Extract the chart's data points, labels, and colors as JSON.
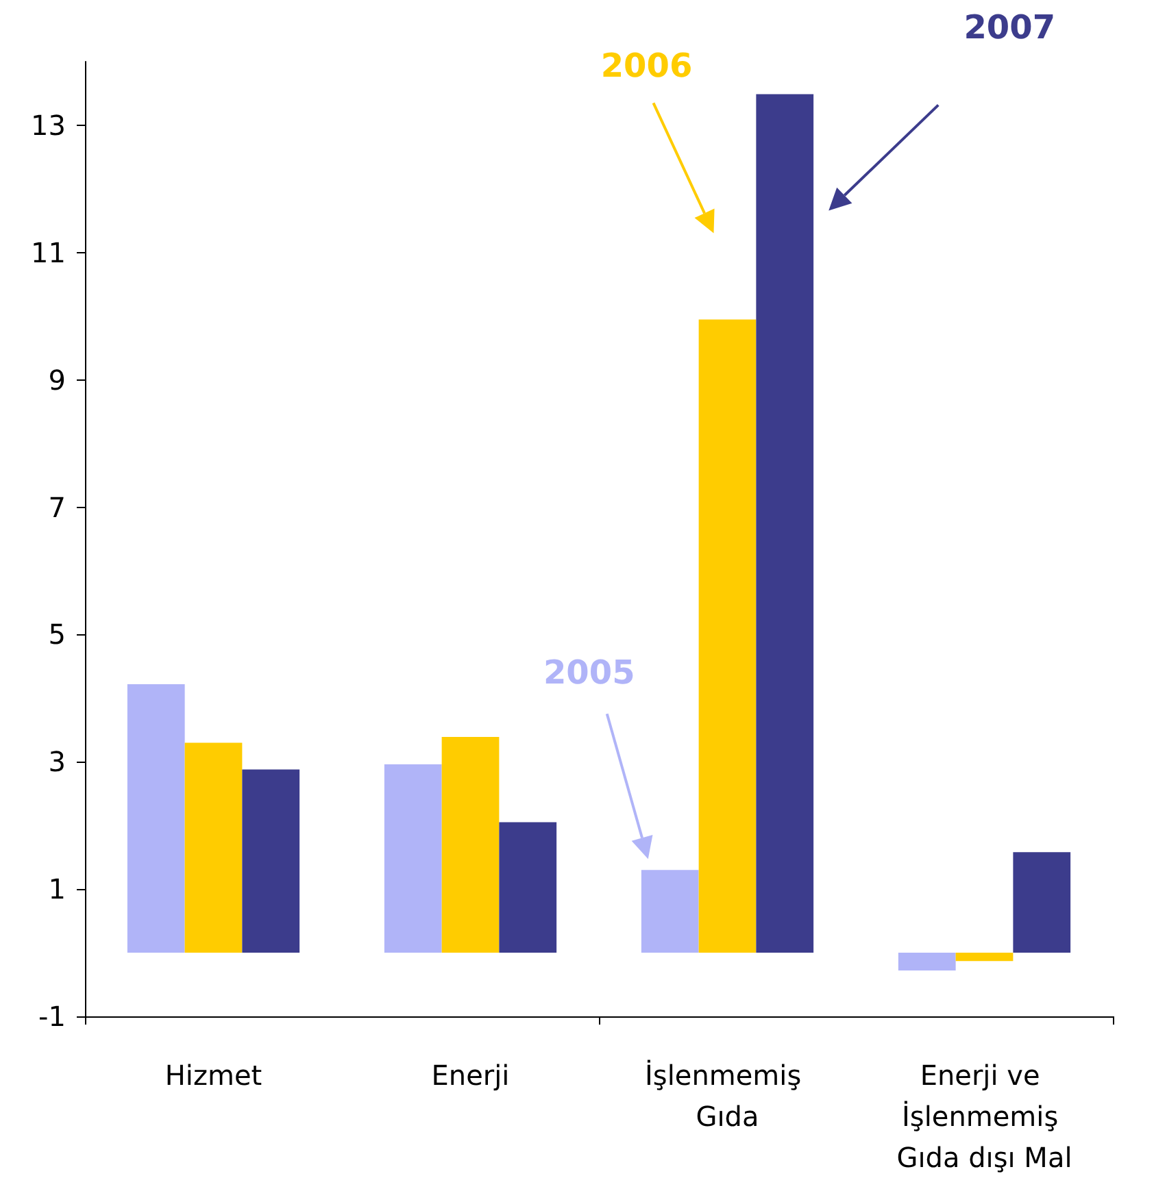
{
  "chart_data": {
    "type": "bar",
    "categories": [
      "Hizmet",
      "Enerji",
      "İşlenmemiş Gıda",
      "Enerji ve İşlenmemiş Gıda dışı Mal"
    ],
    "series": [
      {
        "name": "2005",
        "color": "#b0b4f8",
        "values": [
          4.22,
          2.96,
          1.3,
          -0.28
        ]
      },
      {
        "name": "2006",
        "color": "#ffcc00",
        "values": [
          3.3,
          3.39,
          9.95,
          -0.13
        ]
      },
      {
        "name": "2007",
        "color": "#3c3c8c",
        "values": [
          2.88,
          2.05,
          13.49,
          1.58
        ]
      }
    ],
    "ylim": [
      -1,
      14
    ],
    "yticks": [
      -1,
      1,
      3,
      5,
      7,
      9,
      11,
      13
    ],
    "grid": false,
    "legend": false
  }
}
